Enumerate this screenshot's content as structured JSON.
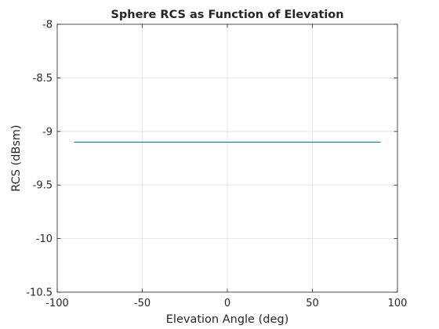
{
  "chart_data": {
    "type": "line",
    "title": "Sphere RCS as Function of Elevation",
    "xlabel": "Elevation Angle (deg)",
    "ylabel": "RCS (dBsm)",
    "xlim": [
      -100,
      100
    ],
    "ylim": [
      -10.5,
      -8
    ],
    "xticks": [
      -100,
      -50,
      0,
      50,
      100
    ],
    "xtick_labels": [
      "-100",
      "-50",
      "0",
      "50",
      "100"
    ],
    "yticks": [
      -10.5,
      -10,
      -9.5,
      -9,
      -8.5,
      -8
    ],
    "ytick_labels": [
      "-10.5",
      "-10",
      "-9.5",
      "-9",
      "-8.5",
      "-8"
    ],
    "grid": true,
    "series": [
      {
        "color": "#0072BD",
        "x": [
          -90,
          90
        ],
        "y": [
          -9.1,
          -9.1
        ]
      }
    ]
  }
}
